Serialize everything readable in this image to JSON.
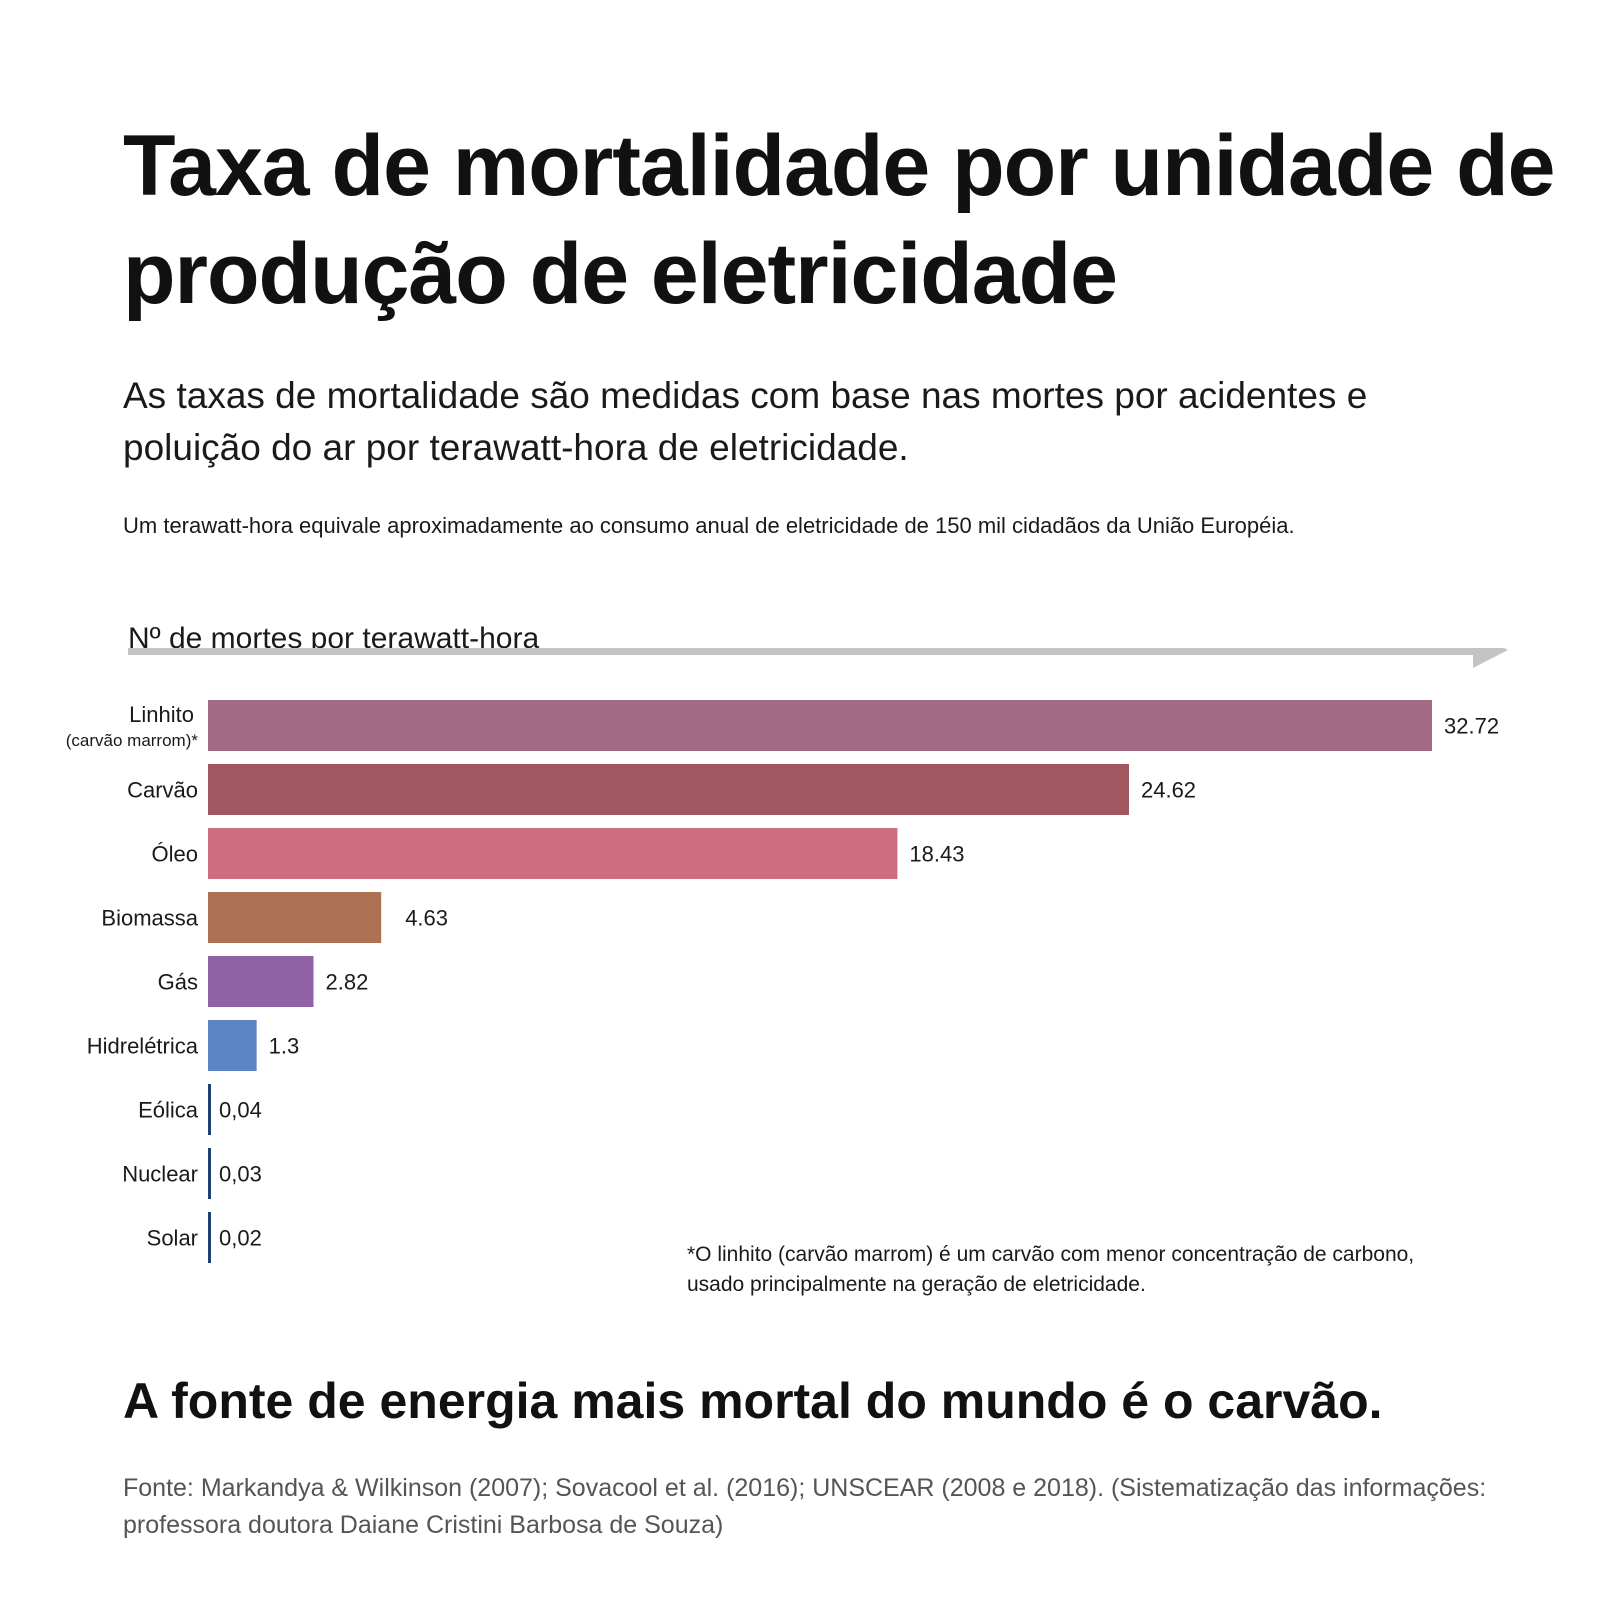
{
  "header": {
    "title": "Taxa de mortalidade por unidade de produção de eletricidade",
    "subtitle": "As taxas de mortalidade são medidas com base nas mortes por acidentes e poluição do ar por terawatt-hora de eletricidade.",
    "note": "Um terawatt-hora equivale aproximadamente ao consumo anual de eletricidade de 150 mil cidadãos da União Européia."
  },
  "chart_data": {
    "type": "bar",
    "orientation": "horizontal",
    "xlabel": "Nº de mortes por terawatt-hora",
    "categories": [
      "Linhito",
      "Carvão",
      "Óleo",
      "Biomassa",
      "Gás",
      "Hidrelétrica",
      "Eólica",
      "Nuclear",
      "Solar"
    ],
    "category_sublabels": [
      "(carvão marrom)*",
      "",
      "",
      "",
      "",
      "",
      "",
      "",
      ""
    ],
    "values": [
      32.72,
      24.62,
      18.43,
      4.63,
      2.82,
      1.3,
      0.04,
      0.03,
      0.02
    ],
    "value_labels": [
      "32.72",
      "24.62",
      "18.43",
      "4.63",
      "2.82",
      "1.3",
      "0,04",
      "0,03",
      "0,02"
    ],
    "colors": [
      "#a36a86",
      "#a1575f",
      "#cc6e7f",
      "#ad7254",
      "#8f62a6",
      "#5b85c4",
      "#1f3f6e",
      "#1f3f6e",
      "#1f3f6e"
    ],
    "xlim": [
      0,
      32.72
    ],
    "arrow_color": "#c4c4c4",
    "grid": false,
    "legend": "none"
  },
  "footnote": {
    "line1": "*O linhito (carvão marrom) é um carvão com menor concentração de carbono,",
    "line2": "usado principalmente na geração de eletricidade."
  },
  "headline": "A fonte de energia mais mortal do mundo é o carvão.",
  "source": "Fonte: Markandya & Wilkinson (2007); Sovacool et al. (2016); UNSCEAR (2008 e 2018). (Sistematização das informações: professora doutora Daiane Cristini Barbosa de Souza)"
}
